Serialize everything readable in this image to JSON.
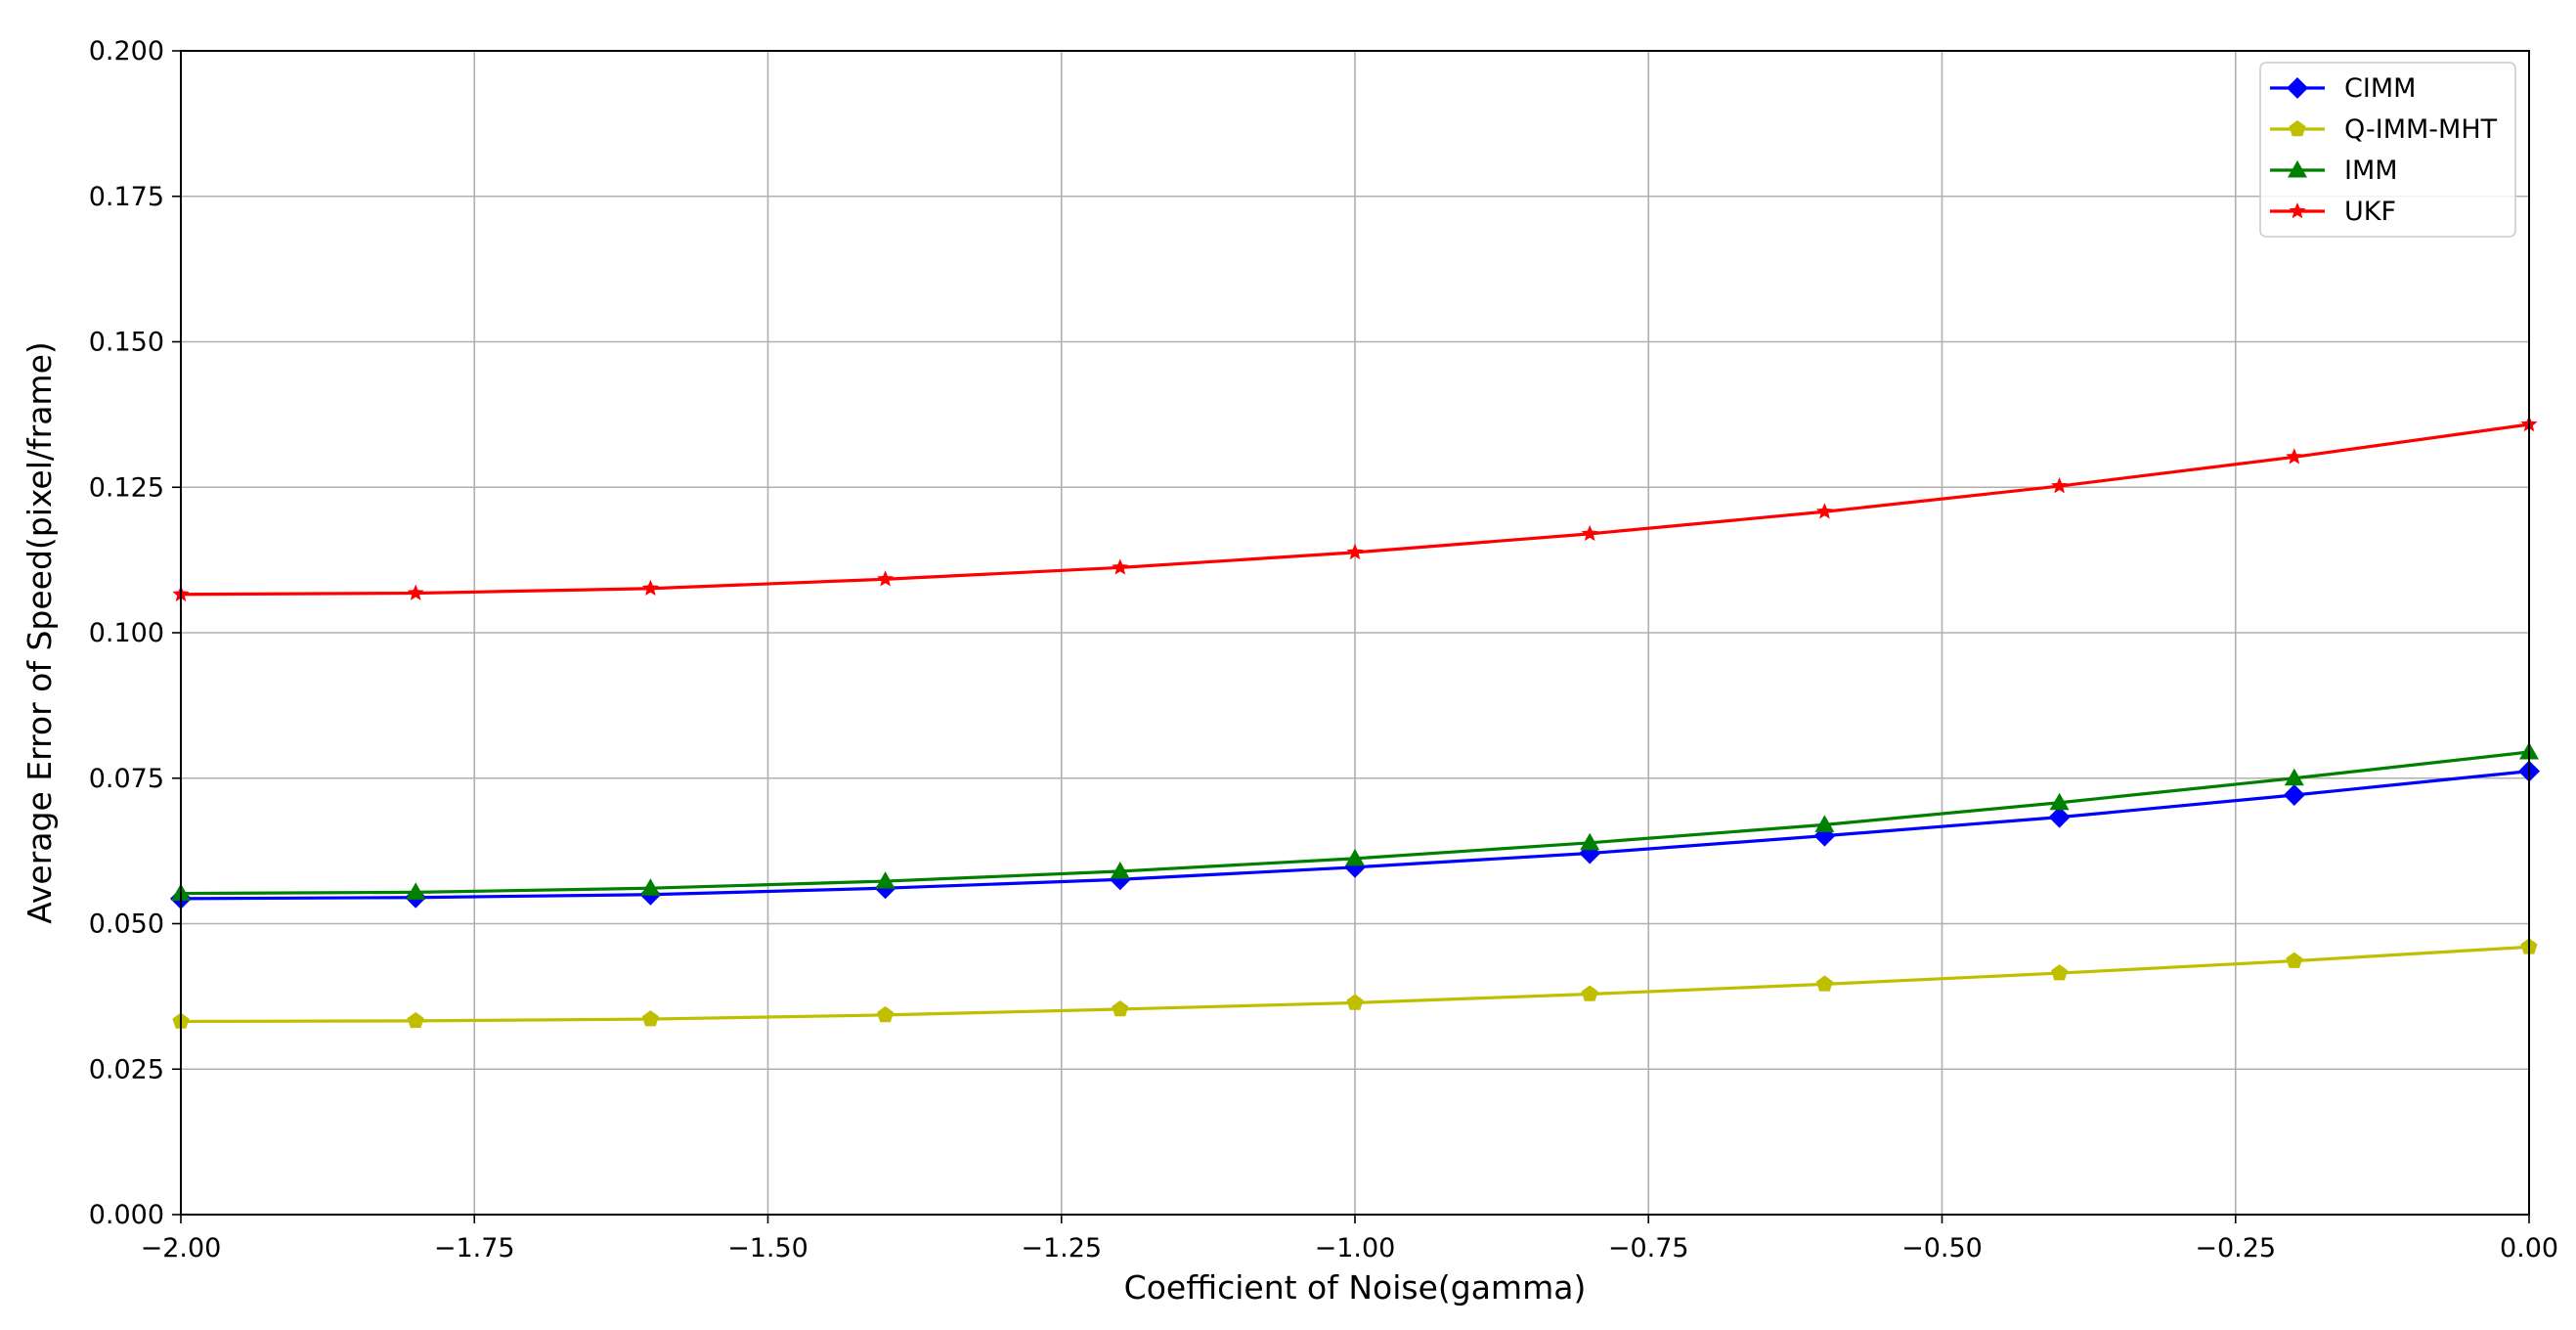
{
  "chart_data": {
    "type": "line",
    "title": "",
    "xlabel": "Coefficient of Noise(gamma)",
    "ylabel": "Average Error of Speed(pixel/frame)",
    "xlim": [
      -2.0,
      0.0
    ],
    "ylim": [
      0.0,
      0.2
    ],
    "grid": true,
    "legend_position": "top-right",
    "x_ticks": [
      "−2.00",
      "−1.75",
      "−1.50",
      "−1.25",
      "−1.00",
      "−0.75",
      "−0.50",
      "−0.25",
      "0.00"
    ],
    "x_tick_values": [
      -2.0,
      -1.75,
      -1.5,
      -1.25,
      -1.0,
      -0.75,
      -0.5,
      -0.25,
      0.0
    ],
    "y_ticks": [
      "0.000",
      "0.025",
      "0.050",
      "0.075",
      "0.100",
      "0.125",
      "0.150",
      "0.175",
      "0.200"
    ],
    "y_tick_values": [
      0.0,
      0.025,
      0.05,
      0.075,
      0.1,
      0.125,
      0.15,
      0.175,
      0.2
    ],
    "x": [
      -2.0,
      -1.8,
      -1.6,
      -1.4,
      -1.2,
      -1.0,
      -0.8,
      -0.6,
      -0.4,
      -0.2,
      0.0
    ],
    "series": [
      {
        "name": "CIMM",
        "color": "#0000ff",
        "marker": "diamond",
        "values": [
          0.0543,
          0.0545,
          0.055,
          0.0561,
          0.0576,
          0.0597,
          0.0621,
          0.0651,
          0.0683,
          0.0721,
          0.0762
        ]
      },
      {
        "name": "Q-IMM-MHT",
        "color": "#bfbf00",
        "marker": "pentagon",
        "values": [
          0.0332,
          0.0333,
          0.0336,
          0.0343,
          0.0353,
          0.0364,
          0.0379,
          0.0396,
          0.0415,
          0.0436,
          0.046
        ]
      },
      {
        "name": "IMM",
        "color": "#008000",
        "marker": "triangle",
        "values": [
          0.0552,
          0.0554,
          0.0561,
          0.0573,
          0.059,
          0.0612,
          0.0639,
          0.067,
          0.0708,
          0.075,
          0.0795
        ]
      },
      {
        "name": "UKF",
        "color": "#ff0000",
        "marker": "star",
        "values": [
          0.1066,
          0.1068,
          0.1076,
          0.1092,
          0.1112,
          0.1138,
          0.117,
          0.1208,
          0.1252,
          0.1302,
          0.1358
        ]
      }
    ]
  }
}
